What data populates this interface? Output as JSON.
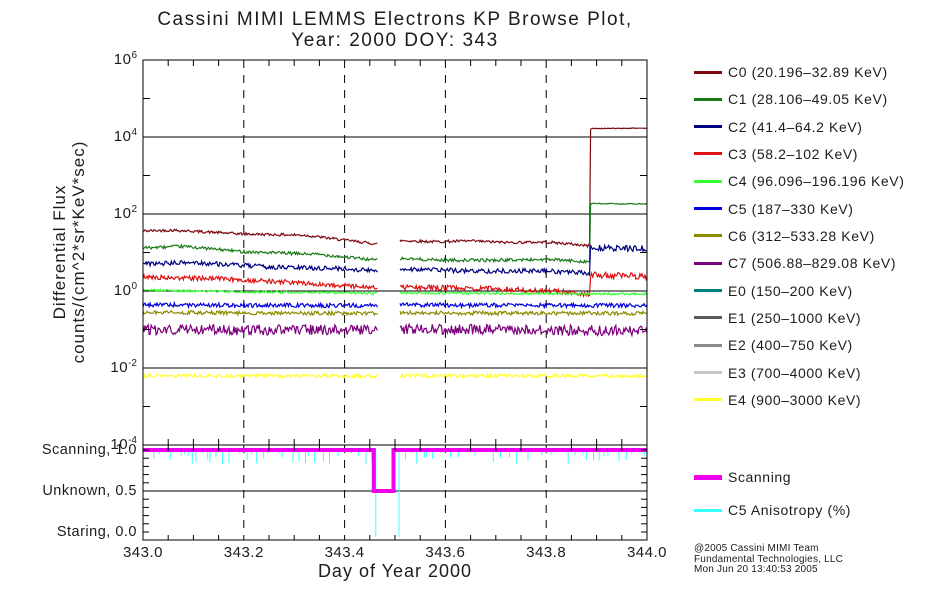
{
  "title": {
    "line1": "Cassini MIMI LEMMS Electrons KP Browse Plot,",
    "line2": "Year: 2000 DOY: 343"
  },
  "y_axis": {
    "title_line1": "Differential Flux",
    "title_line2": "counts/(cm^2*sr*KeV*sec)",
    "tick_exponents": [
      6,
      4,
      2,
      0,
      -2,
      -4
    ]
  },
  "x_axis": {
    "title": "Day of Year 2000",
    "tick_labels": [
      "343.0",
      "343.2",
      "343.4",
      "343.6",
      "343.8",
      "344.0"
    ],
    "tick_values": [
      343.0,
      343.2,
      343.4,
      343.6,
      343.8,
      344.0
    ],
    "minor_tick_step": 0.05
  },
  "mode_axis": {
    "labels": [
      {
        "text": "Scanning, 1.0",
        "value": 1.0
      },
      {
        "text": "Unknown, 0.5",
        "value": 0.5
      },
      {
        "text": "Staring, 0.0",
        "value": 0.0
      }
    ]
  },
  "legend": {
    "items": [
      {
        "id": "C0",
        "label": "C0 (20.196–32.89 KeV)",
        "color": "#7E0A10"
      },
      {
        "id": "C1",
        "label": "C1 (28.106–49.05 KeV)",
        "color": "#1A7A1A"
      },
      {
        "id": "C2",
        "label": "C2 (41.4–64.2 KeV)",
        "color": "#000082"
      },
      {
        "id": "C3",
        "label": "C3 (58.2–102 KeV)",
        "color": "#DD1111"
      },
      {
        "id": "C4",
        "label": "C4 (96.096–196.196 KeV)",
        "color": "#33FF33"
      },
      {
        "id": "C5",
        "label": "C5 (187–330 KeV)",
        "color": "#0000E0"
      },
      {
        "id": "C6",
        "label": "C6 (312–533.28 KeV)",
        "color": "#8B8B00"
      },
      {
        "id": "C7",
        "label": "C7 (506.88–829.08 KeV)",
        "color": "#7D007D"
      },
      {
        "id": "E0",
        "label": "E0 (150–200 KeV)",
        "color": "#007F7F"
      },
      {
        "id": "E1",
        "label": "E1 (250–1000 KeV)",
        "color": "#5A5A5A"
      },
      {
        "id": "E2",
        "label": "E2 (400–750 KeV)",
        "color": "#8C8C8C"
      },
      {
        "id": "E3",
        "label": "E3 (700–4000 KeV)",
        "color": "#C8C8C8"
      },
      {
        "id": "E4",
        "label": "E4 (900–3000 KeV)",
        "color": "#FFFF2E"
      }
    ]
  },
  "mode_legend": {
    "items": [
      {
        "id": "scanning",
        "label": "Scanning",
        "color": "#EE00EE",
        "thick": true
      },
      {
        "id": "anisotropy",
        "label": "C5 Anisotropy (%)",
        "color": "#3BFFFF",
        "thick": false
      }
    ]
  },
  "footer": {
    "line1": "@2005 Cassini MIMI Team",
    "line2": "Fundamental Technologies, LLC",
    "line3": "Mon Jun 20 13:40:53 2005"
  },
  "chart_data": {
    "type": "line",
    "x_range": [
      343.0,
      344.0
    ],
    "y_scale": "log10",
    "y_range_exponents": [
      -4,
      6
    ],
    "grid": {
      "x_dashed": [
        343.2,
        343.4,
        343.6,
        343.8
      ],
      "y_solid_exponents": [
        4,
        2,
        0,
        -2
      ]
    },
    "events": {
      "data_gap": [
        343.466,
        343.511
      ],
      "mode_unknown_interval": [
        343.458,
        343.497
      ],
      "flux_step_time": 343.888
    },
    "series": [
      {
        "name": "C0",
        "color": "#7E0A10",
        "parts": [
          {
            "noise": 0.035,
            "points": [
              [
                343.0,
                1.56
              ],
              [
                343.06,
                1.58
              ],
              [
                343.2,
                1.48
              ],
              [
                343.32,
                1.45
              ],
              [
                343.465,
                1.22
              ]
            ]
          },
          {
            "noise": 0.035,
            "points": [
              [
                343.51,
                1.31
              ],
              [
                343.58,
                1.28
              ],
              [
                343.65,
                1.3
              ],
              [
                343.72,
                1.26
              ],
              [
                343.8,
                1.27
              ],
              [
                343.85,
                1.22
              ],
              [
                343.886,
                1.17
              ],
              [
                343.888,
                4.22
              ]
            ]
          },
          {
            "noise": 0.01,
            "points": [
              [
                343.888,
                4.22
              ],
              [
                344.0,
                4.23
              ]
            ]
          }
        ]
      },
      {
        "name": "C1",
        "color": "#1A7A1A",
        "parts": [
          {
            "noise": 0.04,
            "points": [
              [
                343.0,
                1.12
              ],
              [
                343.08,
                1.16
              ],
              [
                343.2,
                1.02
              ],
              [
                343.35,
                0.95
              ],
              [
                343.465,
                0.8
              ]
            ]
          },
          {
            "noise": 0.04,
            "points": [
              [
                343.51,
                0.84
              ],
              [
                343.6,
                0.8
              ],
              [
                343.7,
                0.8
              ],
              [
                343.8,
                0.82
              ],
              [
                343.886,
                0.76
              ],
              [
                343.888,
                2.27
              ]
            ]
          },
          {
            "noise": 0.015,
            "points": [
              [
                343.888,
                2.27
              ],
              [
                344.0,
                2.26
              ]
            ]
          }
        ]
      },
      {
        "name": "C2",
        "color": "#000082",
        "parts": [
          {
            "noise": 0.06,
            "points": [
              [
                343.0,
                0.7
              ],
              [
                343.1,
                0.74
              ],
              [
                343.25,
                0.62
              ],
              [
                343.4,
                0.58
              ],
              [
                343.465,
                0.52
              ]
            ]
          },
          {
            "noise": 0.06,
            "points": [
              [
                343.51,
                0.58
              ],
              [
                343.65,
                0.52
              ],
              [
                343.8,
                0.52
              ],
              [
                343.886,
                0.46
              ],
              [
                343.888,
                1.12
              ]
            ]
          },
          {
            "noise": 0.08,
            "points": [
              [
                343.888,
                1.12
              ],
              [
                344.0,
                1.1
              ]
            ]
          }
        ]
      },
      {
        "name": "C3",
        "color": "#DD1111",
        "parts": [
          {
            "noise": 0.06,
            "points": [
              [
                343.0,
                0.36
              ],
              [
                343.15,
                0.32
              ],
              [
                343.3,
                0.22
              ],
              [
                343.465,
                0.08
              ]
            ]
          },
          {
            "noise": 0.07,
            "points": [
              [
                343.51,
                0.1
              ],
              [
                343.7,
                0.06
              ],
              [
                343.85,
                -0.04
              ],
              [
                343.886,
                -0.08
              ],
              [
                343.888,
                0.42
              ]
            ]
          },
          {
            "noise": 0.08,
            "points": [
              [
                343.888,
                0.42
              ],
              [
                344.0,
                0.38
              ]
            ]
          }
        ]
      },
      {
        "name": "C4",
        "color": "#33FF33",
        "parts": [
          {
            "noise": 0.03,
            "points": [
              [
                343.0,
                0.02
              ],
              [
                343.2,
                -0.02
              ],
              [
                343.465,
                -0.06
              ]
            ]
          },
          {
            "noise": 0.028,
            "points": [
              [
                343.51,
                -0.05
              ],
              [
                344.0,
                -0.08
              ]
            ]
          }
        ]
      },
      {
        "name": "C5",
        "color": "#0000E0",
        "parts": [
          {
            "noise": 0.055,
            "points": [
              [
                343.0,
                -0.36
              ],
              [
                343.465,
                -0.38
              ]
            ]
          },
          {
            "noise": 0.055,
            "points": [
              [
                343.51,
                -0.36
              ],
              [
                344.0,
                -0.38
              ]
            ]
          }
        ]
      },
      {
        "name": "C6",
        "color": "#8B8B00",
        "parts": [
          {
            "noise": 0.05,
            "points": [
              [
                343.0,
                -0.56
              ],
              [
                343.465,
                -0.58
              ]
            ]
          },
          {
            "noise": 0.05,
            "points": [
              [
                343.51,
                -0.57
              ],
              [
                344.0,
                -0.58
              ]
            ]
          }
        ]
      },
      {
        "name": "C7",
        "color": "#7D007D",
        "parts": [
          {
            "noise": 0.14,
            "points": [
              [
                343.0,
                -1.0
              ],
              [
                343.465,
                -1.02
              ]
            ]
          },
          {
            "noise": 0.14,
            "points": [
              [
                343.51,
                -1.0
              ],
              [
                344.0,
                -1.03
              ]
            ]
          }
        ]
      },
      {
        "name": "E4",
        "color": "#FFFF2E",
        "parts": [
          {
            "noise": 0.05,
            "points": [
              [
                343.0,
                -2.2
              ],
              [
                343.465,
                -2.21
              ]
            ]
          },
          {
            "noise": 0.05,
            "points": [
              [
                343.51,
                -2.2
              ],
              [
                344.0,
                -2.21
              ]
            ]
          }
        ]
      }
    ],
    "mode_panel": {
      "y_values": [
        0.0,
        0.5,
        1.0
      ],
      "solid_line_value": 0.5,
      "scanning": {
        "color": "#EE00EE",
        "stroke_width": 4,
        "points": [
          [
            343.0,
            1.0
          ],
          [
            343.458,
            1.0
          ],
          [
            343.458,
            0.5
          ],
          [
            343.497,
            0.5
          ],
          [
            343.497,
            1.0
          ],
          [
            344.0,
            1.0
          ]
        ]
      },
      "anisotropy": {
        "color": "#3BFFFF",
        "stroke_width": 1,
        "baseline": 1.0,
        "segments": [
          [
            343.0,
            343.462
          ],
          [
            343.508,
            344.0
          ]
        ],
        "edge_drop_to": -0.06,
        "spikes": {
          "min_gap": 0.0035,
          "max_gap": 0.018,
          "min_depth": 0.015,
          "max_depth": 0.18,
          "seed": 7
        }
      }
    }
  }
}
